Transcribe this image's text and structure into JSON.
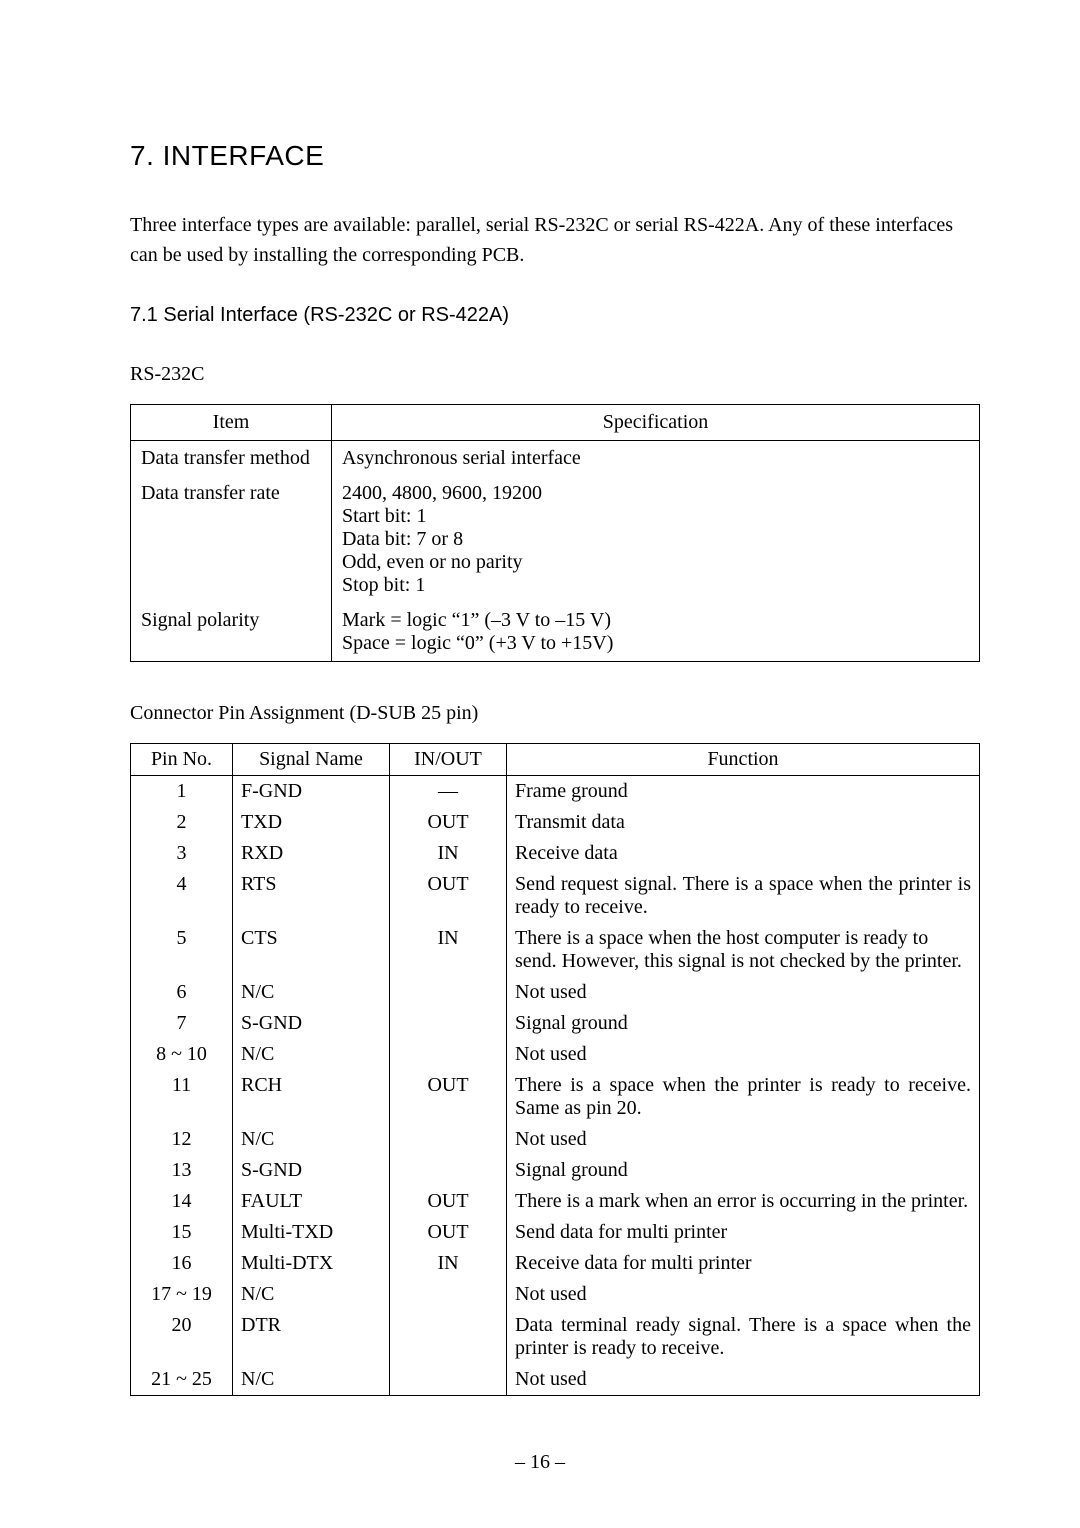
{
  "heading": {
    "number": "7.",
    "title": "INTERFACE",
    "full": "7.   INTERFACE"
  },
  "intro": "Three interface types are available: parallel, serial RS-232C or serial RS-422A. Any of these interfaces can be used by installing the corresponding PCB.",
  "subheading": "7.1 Serial Interface (RS-232C or RS-422A)",
  "spec_caption": "RS-232C",
  "spec_table": {
    "columns": [
      "Item",
      "Specification"
    ],
    "rows": [
      {
        "item": "Data transfer method",
        "spec": "Asynchronous serial interface"
      },
      {
        "item": "Data transfer rate",
        "spec": "2400, 4800, 9600, 19200\nStart bit: 1\nData bit: 7 or 8\nOdd, even or no parity\nStop bit: 1"
      },
      {
        "item": "Signal polarity",
        "spec": "Mark = logic “1” (–3 V to –15 V)\nSpace = logic “0” (+3 V to +15V)"
      }
    ]
  },
  "pin_caption": "Connector Pin Assignment (D-SUB 25 pin)",
  "pin_table": {
    "columns": [
      "Pin No.",
      "Signal Name",
      "IN/OUT",
      "Function"
    ],
    "rows": [
      {
        "pin": "1",
        "name": "F-GND",
        "io": "—",
        "fn": "Frame ground",
        "justify": false
      },
      {
        "pin": "2",
        "name": "TXD",
        "io": "OUT",
        "fn": "Transmit data",
        "justify": false
      },
      {
        "pin": "3",
        "name": "RXD",
        "io": "IN",
        "fn": "Receive data",
        "justify": false
      },
      {
        "pin": "4",
        "name": "RTS",
        "io": "OUT",
        "fn": "Send request signal. There is a space when the printer is ready to receive.",
        "justify": true
      },
      {
        "pin": "5",
        "name": "CTS",
        "io": "IN",
        "fn": "There is a space when the host computer is ready to send. However, this signal is not checked by the printer.",
        "justify": false
      },
      {
        "pin": "6",
        "name": "N/C",
        "io": "",
        "fn": "Not used",
        "justify": false
      },
      {
        "pin": "7",
        "name": "S-GND",
        "io": "",
        "fn": "Signal ground",
        "justify": false
      },
      {
        "pin": "8 ~ 10",
        "name": "N/C",
        "io": "",
        "fn": "Not used",
        "justify": false
      },
      {
        "pin": "11",
        "name": "RCH",
        "io": "OUT",
        "fn": "There is a space when the printer is ready to receive. Same as pin 20.",
        "justify": true
      },
      {
        "pin": "12",
        "name": "N/C",
        "io": "",
        "fn": "Not used",
        "justify": false
      },
      {
        "pin": "13",
        "name": "S-GND",
        "io": "",
        "fn": "Signal ground",
        "justify": false
      },
      {
        "pin": "14",
        "name": "FAULT",
        "io": "OUT",
        "fn": "There is a mark when an error is occurring in the printer.",
        "justify": false
      },
      {
        "pin": "15",
        "name": "Multi-TXD",
        "io": "OUT",
        "fn": "Send data for multi printer",
        "justify": false
      },
      {
        "pin": "16",
        "name": "Multi-DTX",
        "io": "IN",
        "fn": "Receive data for multi printer",
        "justify": false
      },
      {
        "pin": "17 ~ 19",
        "name": "N/C",
        "io": "",
        "fn": "Not used",
        "justify": false
      },
      {
        "pin": "20",
        "name": "DTR",
        "io": "",
        "fn": "Data terminal ready signal. There is a space when the printer is ready to receive.",
        "justify": true
      },
      {
        "pin": "21 ~ 25",
        "name": "N/C",
        "io": "",
        "fn": "Not used",
        "justify": false
      }
    ]
  },
  "page_number": "– 16 –"
}
